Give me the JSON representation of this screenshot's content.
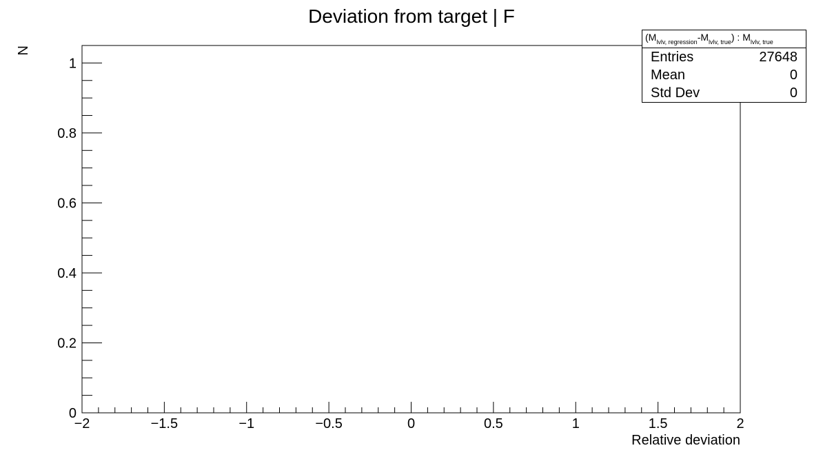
{
  "chart_data": {
    "type": "bar",
    "title": "Deviation from target | F",
    "xlabel": "Relative deviation",
    "ylabel": "N",
    "xlim": [
      -2,
      2
    ],
    "ylim": [
      0,
      1.05
    ],
    "x_ticks": [
      -2,
      -1.5,
      -1,
      -0.5,
      0,
      0.5,
      1,
      1.5,
      2
    ],
    "x_tick_labels": [
      "−2",
      "−1.5",
      "−1",
      "−0.5",
      "0",
      "0.5",
      "1",
      "1.5",
      "2"
    ],
    "y_ticks": [
      0,
      0.2,
      0.4,
      0.6,
      0.8,
      1
    ],
    "y_tick_labels": [
      "0",
      "0.2",
      "0.4",
      "0.6",
      "0.8",
      "1"
    ],
    "series": [],
    "grid": false
  },
  "stats": {
    "title_parts": [
      "(M",
      "lvlv, regression",
      "-M",
      "lvlv, true",
      ") : M",
      "lvlv, true"
    ],
    "entries_label": "Entries",
    "entries_value": "27648",
    "mean_label": "Mean",
    "mean_value": "0",
    "std_label": "Std Dev",
    "std_value": "0"
  }
}
